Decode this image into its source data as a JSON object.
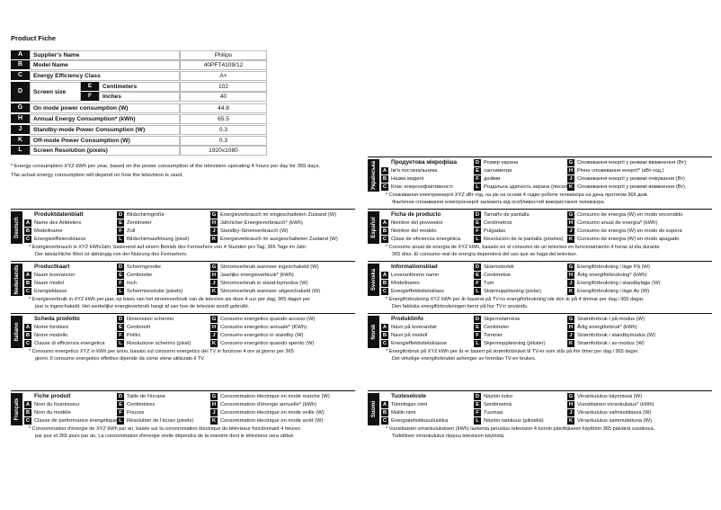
{
  "title": "Product Fiche",
  "table": {
    "rows": [
      {
        "letter": "A",
        "label": "Supplier's Name",
        "value": "Philips"
      },
      {
        "letter": "B",
        "label": "Model Name",
        "value": "40PFT4109/12"
      },
      {
        "letter": "C",
        "label": "Energy Efficiency Class",
        "value": "A+"
      },
      {
        "letter": "D",
        "label": "Screen size",
        "subrows": [
          {
            "letter": "E",
            "label": "Centimeters",
            "value": "102"
          },
          {
            "letter": "F",
            "label": "Inches",
            "value": "40"
          }
        ]
      },
      {
        "letter": "G",
        "label": "On mode power consumption (W)",
        "value": "44.8"
      },
      {
        "letter": "H",
        "label": "Annual Energy Consumption* (kWh)",
        "value": "65.5"
      },
      {
        "letter": "J",
        "label": "Standby-mode Power Consumption (W)",
        "value": "0.3"
      },
      {
        "letter": "K",
        "label": "Off-mode Power Consumption (W)",
        "value": "0.3"
      },
      {
        "letter": "L",
        "label": "Screen Resolution (pixels)",
        "value": "1920x1080"
      }
    ]
  },
  "footnote": [
    "* Energy consumption XYZ kWh per year, based on the power consumption of the television operating 4 hours per day for 365 days.",
    "The actual energy consumption will depend on how the television is used."
  ],
  "left_column": [
    {
      "language": "Deutsch",
      "title": "Produktdatenblatt",
      "columns": [
        [
          {
            "letter": "A",
            "text": "Name des Anbieters"
          },
          {
            "letter": "B",
            "text": "Modellname"
          },
          {
            "letter": "C",
            "text": "Energieeffizienzklasse"
          }
        ],
        [
          {
            "letter": "D",
            "text": "Bildschirmgröße"
          },
          {
            "letter": "E",
            "text": "Zentimeter"
          },
          {
            "letter": "F",
            "text": "Zoll"
          },
          {
            "letter": "L",
            "text": "Bildschirmauflösung (pixel)"
          }
        ],
        [
          {
            "letter": "G",
            "text": "Energieverbrauch im eingeschalteten Zustand (W)"
          },
          {
            "letter": "H",
            "text": "Jährlicher Energieverbrauch* (kWh)"
          },
          {
            "letter": "J",
            "text": "Standby-Stromverbrauch (W)"
          },
          {
            "letter": "K",
            "text": "Energieverbrauch im ausgeschalteten Zustand (W)"
          }
        ]
      ],
      "note": [
        "* Energieverbrauch in XYZ kWh/Jahr, basierend auf einem Betrieb des Fernsehers von 4 Stunden pro Tag, 365 Tage im Jahr.",
        "Der tatsächliche Wert ist abhängig von der Nutzung des Fernsehers."
      ]
    },
    {
      "language": "Nederlands",
      "title": "Productkaart",
      "columns": [
        [
          {
            "letter": "A",
            "text": "Naam leverancier"
          },
          {
            "letter": "B",
            "text": "Naam model"
          },
          {
            "letter": "C",
            "text": "Energieklasse"
          }
        ],
        [
          {
            "letter": "D",
            "text": "Schermgrootte"
          },
          {
            "letter": "E",
            "text": "Centimeter"
          },
          {
            "letter": "F",
            "text": "Inch"
          },
          {
            "letter": "L",
            "text": "Schermresolutie (pixels)"
          }
        ],
        [
          {
            "letter": "G",
            "text": "Stroomverbruik wanneer ingeschakeld (W)"
          },
          {
            "letter": "H",
            "text": "Jaarlijks energieverbruik* (kWh)"
          },
          {
            "letter": "J",
            "text": "Stroomverbruik in stand-bymodus (W)"
          },
          {
            "letter": "K",
            "text": "Stroomverbruik wanneer uitgeschakeld (W)"
          }
        ]
      ],
      "note": [
        "* Energieverbruik in XYZ kWh per jaar, op basis van het stroomverbruik van de televisie als deze 4 uur per dag, 365 dagen per",
        "jaar is ingeschakeld. Het werkelijke energieverbruik hangt af van hoe de televisie wordt gebruikt."
      ]
    },
    {
      "language": "Italiano",
      "title": "Scheda prodotto",
      "columns": [
        [
          {
            "letter": "A",
            "text": "Nome fornitore"
          },
          {
            "letter": "B",
            "text": "Nome modello"
          },
          {
            "letter": "C",
            "text": "Classe di efficienza energetica"
          }
        ],
        [
          {
            "letter": "D",
            "text": "Dimensioni schermo"
          },
          {
            "letter": "E",
            "text": "Centimetri"
          },
          {
            "letter": "F",
            "text": "Pollici"
          },
          {
            "letter": "L",
            "text": "Risoluzione schermo (pixel)"
          }
        ],
        [
          {
            "letter": "G",
            "text": "Consumo energetico quando acceso (W)"
          },
          {
            "letter": "H",
            "text": "Consumo energetico annuale* (KWh)"
          },
          {
            "letter": "J",
            "text": "Consumo energetico in standby (W)"
          },
          {
            "letter": "K",
            "text": "Consumo energetico quando spento (W)"
          }
        ]
      ],
      "note": [
        "* Consumo energetico XYZ in kWh per anno, basato sul consumo energetico del TV in funzione 4 ore al giorno per 365",
        "giorni. Il consumo energetico effettivo dipende da come viene utilizzato il TV."
      ]
    },
    {
      "language": "Français",
      "title": "Fiche produit",
      "columns": [
        [
          {
            "letter": "A",
            "text": "Nom du fournisseur"
          },
          {
            "letter": "B",
            "text": "Nom du modèle"
          },
          {
            "letter": "C",
            "text": "Classe de performance énergétique"
          }
        ],
        [
          {
            "letter": "D",
            "text": "Taille de l'écrane"
          },
          {
            "letter": "E",
            "text": "Centimètres"
          },
          {
            "letter": "F",
            "text": "Pouces"
          },
          {
            "letter": "L",
            "text": "Résolution de l'écran (pixels)"
          }
        ],
        [
          {
            "letter": "G",
            "text": "Consommation électrique en mode marche (W)"
          },
          {
            "letter": "H",
            "text": "Consommation d'énergie annuelle* (kWh)"
          },
          {
            "letter": "J",
            "text": "Consommation électrique en mode veille (W)"
          },
          {
            "letter": "K",
            "text": "Consommation électrique en mode arrêt (W)"
          }
        ]
      ],
      "note": [
        "* Consommation d'énergie de XYZ kWh par an, basée sur la consommation électrique du téléviseur fonctionnant 4 heures",
        "par jour et 365 jours par an. La consommation d'énergie réelle dépendra de la manière dont le téléviseur sera utilisé."
      ]
    }
  ],
  "right_column": [
    {
      "language": "Українська",
      "title": "Продуктова мікрофіша",
      "columns": [
        [
          {
            "letter": "A",
            "text": "Ім'я постачальника"
          },
          {
            "letter": "B",
            "text": "Назва моделі"
          },
          {
            "letter": "C",
            "text": "Клас енергоефективності"
          }
        ],
        [
          {
            "letter": "D",
            "text": "Розмір екрана"
          },
          {
            "letter": "E",
            "text": "сантиметри"
          },
          {
            "letter": "F",
            "text": "дюйми"
          },
          {
            "letter": "L",
            "text": "Роздільна здатність екрана (пікселі)"
          }
        ],
        [
          {
            "letter": "G",
            "text": "Споживання енергії у режимі ввімкнення (Вт)"
          },
          {
            "letter": "H",
            "text": "Річне споживання енергії* (кВт-год.)"
          },
          {
            "letter": "J",
            "text": "Споживання енергії у режимі очікування (Вт)"
          },
          {
            "letter": "K",
            "text": "Споживання енергії у режимі вимкнення (Вт)"
          }
        ]
      ],
      "note": [
        "* Споживання електроенергії XYZ кВт-год. на рік на основі 4 годин роботи телевізора на день протягом 365 днів.",
        "Фактичне споживання електроенергії залежить від особливостей використання телевізора."
      ]
    },
    {
      "language": "Español",
      "title": "Ficha de producto",
      "columns": [
        [
          {
            "letter": "A",
            "text": "Nombre del proveedor"
          },
          {
            "letter": "B",
            "text": "Nombre del modelo"
          },
          {
            "letter": "C",
            "text": "Clase de eficiencia energética"
          }
        ],
        [
          {
            "letter": "D",
            "text": "Tamaño de pantalla"
          },
          {
            "letter": "E",
            "text": "Centímetros"
          },
          {
            "letter": "F",
            "text": "Pulgadas"
          },
          {
            "letter": "L",
            "text": "Resolución de la pantalla (píxeles)"
          }
        ],
        [
          {
            "letter": "G",
            "text": "Consumo de energía (W) en modo encendido"
          },
          {
            "letter": "H",
            "text": "Consumo anual de energía* (kWh)"
          },
          {
            "letter": "J",
            "text": "Consumo de energía (W) en modo de espera"
          },
          {
            "letter": "K",
            "text": "Consumo de energía (W) en modo apagado"
          }
        ]
      ],
      "note": [
        "* Consumo anual de energía de XYZ kWh, basado en el consumo de un televisor en funcionamiento 4 horas al día durante",
        "365 días. El consumo real de energía dependerá del uso que se haga del televisor."
      ]
    },
    {
      "language": "Svenska",
      "title": "Informationsblad",
      "columns": [
        [
          {
            "letter": "A",
            "text": "Leverantörens namn"
          },
          {
            "letter": "B",
            "text": "Modellnamn"
          },
          {
            "letter": "C",
            "text": "Energieffektivitetsklass"
          }
        ],
        [
          {
            "letter": "D",
            "text": "Skärmstorlek"
          },
          {
            "letter": "E",
            "text": "Centimetrar"
          },
          {
            "letter": "F",
            "text": "Tum"
          },
          {
            "letter": "L",
            "text": "Skärmupplösning (pixlar)"
          }
        ],
        [
          {
            "letter": "G",
            "text": "Energiförbrukning i läge På (W)"
          },
          {
            "letter": "H",
            "text": "Årlig energiförbrukning* (kWh)"
          },
          {
            "letter": "J",
            "text": "Energiförbrukning i standbyläge (W)"
          },
          {
            "letter": "K",
            "text": "Energiförbrukning i läge Av (W)"
          }
        ]
      ],
      "note": [
        "* Energiförbrukning XYZ kWh per år baserat på TV:ns energiförbrukning när den är på 4 timmar per dag i 365 dagar.",
        "Den faktiska energiförbrukningen beror på hur TV:n används."
      ]
    },
    {
      "language": "Norsk",
      "title": "Produktinfo",
      "columns": [
        [
          {
            "letter": "A",
            "text": "Navn på leverandør"
          },
          {
            "letter": "B",
            "text": "Navn på modell"
          },
          {
            "letter": "C",
            "text": "Energieffektivitetsklasse"
          }
        ],
        [
          {
            "letter": "D",
            "text": "Skjermstørrelse"
          },
          {
            "letter": "E",
            "text": "Centimeter"
          },
          {
            "letter": "F",
            "text": "Tommer"
          },
          {
            "letter": "L",
            "text": "Skjermoppløsning (piksler)"
          }
        ],
        [
          {
            "letter": "G",
            "text": "Strømforbruk i på-modus (W)"
          },
          {
            "letter": "H",
            "text": "Årlig energiforbruk* (kWh)"
          },
          {
            "letter": "J",
            "text": "Strømforbruk i standbymodus (W)"
          },
          {
            "letter": "K",
            "text": "Strømforbruk i av-modus (W)"
          }
        ]
      ],
      "note": [
        "* Energiforbruk på XYZ kWh per år er basert på strømforbruket til TV-er som står på fire timer per dag i 365 dager.",
        "Det virkelige energiforbruket avhenger av hvordan TV-en brukes."
      ]
    },
    {
      "language": "Suomi",
      "title": "Tuoteseloste",
      "columns": [
        [
          {
            "letter": "A",
            "text": "Toimittajan nimi"
          },
          {
            "letter": "B",
            "text": "Mallin nimi"
          },
          {
            "letter": "C",
            "text": "Energiatehokkuusluokka"
          }
        ],
        [
          {
            "letter": "D",
            "text": "Näytön koko"
          },
          {
            "letter": "E",
            "text": "Senttimetriä"
          },
          {
            "letter": "F",
            "text": "Tuumaa"
          },
          {
            "letter": "L",
            "text": "Näytön tarkkuus (pikseliä)"
          }
        ],
        [
          {
            "letter": "G",
            "text": "Virrankulutus käynnissä (W)"
          },
          {
            "letter": "H",
            "text": "Vuosittainen virrankulutus* (kWh)"
          },
          {
            "letter": "J",
            "text": "Virrankulutus valmiustilassa (W)"
          },
          {
            "letter": "K",
            "text": "Virrankulutus sammutettuna (W)"
          }
        ]
      ],
      "note": [
        "* Vuosittaisen virrankulutuksen (kWh) laskenta perustuu television 4 tunnin päivittäiseen käyttöön 365 päivänä vuodessa.",
        "Todellinen virrankulutus riippuu television käytöstä."
      ]
    }
  ]
}
